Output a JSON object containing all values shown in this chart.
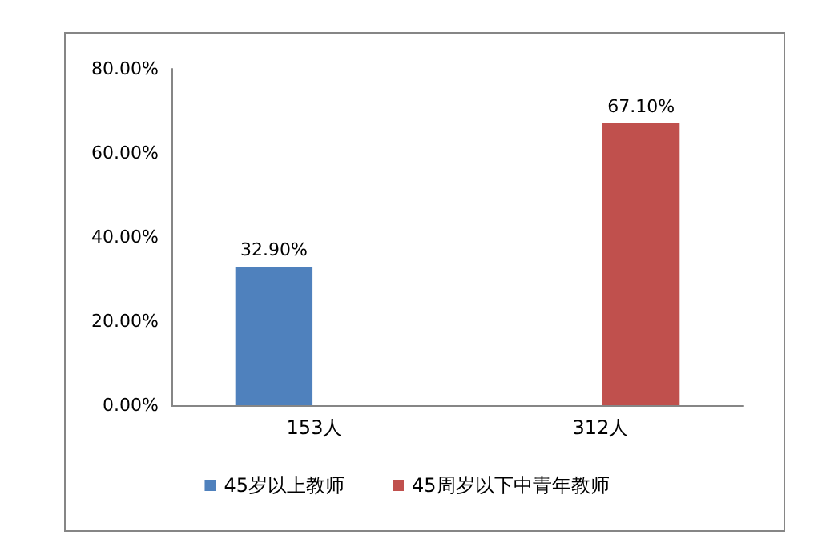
{
  "chart_data": {
    "type": "bar",
    "categories": [
      "153人",
      "312人"
    ],
    "series": [
      {
        "name": "45岁以上教师",
        "color": "#4f81bd",
        "values": [
          32.9,
          null
        ],
        "value_labels": [
          "32.90%",
          null
        ]
      },
      {
        "name": "45周岁以下中青年教师",
        "color": "#c0504d",
        "values": [
          null,
          67.1
        ],
        "value_labels": [
          null,
          "67.10%"
        ]
      }
    ],
    "ylim": [
      0,
      80
    ],
    "yticks": [
      {
        "value": 0,
        "label": "0.00%"
      },
      {
        "value": 20,
        "label": "20.00%"
      },
      {
        "value": 40,
        "label": "40.00%"
      },
      {
        "value": 60,
        "label": "60.00%"
      },
      {
        "value": 80,
        "label": "80.00%"
      }
    ],
    "grid": false,
    "legend": "bottom"
  }
}
